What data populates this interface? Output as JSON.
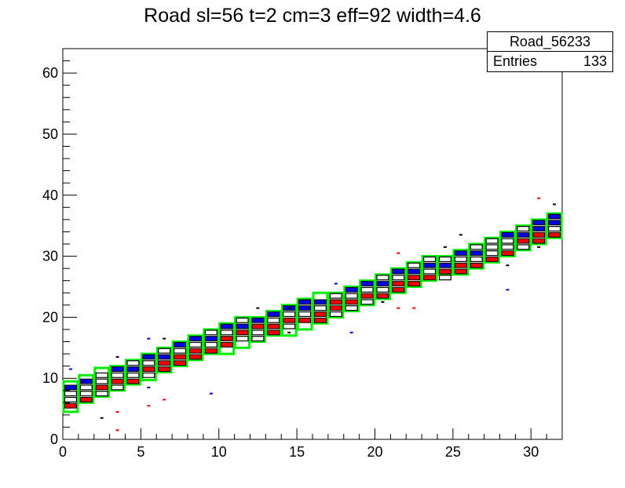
{
  "chart_data": {
    "type": "heatmap",
    "title": "Road sl=56 t=2 cm=3 eff=92 width=4.6",
    "xlabel": "",
    "ylabel": "",
    "xlim": [
      0,
      32
    ],
    "ylim": [
      0,
      64
    ],
    "x_ticks": [
      "0",
      "5",
      "10",
      "15",
      "20",
      "25",
      "30"
    ],
    "y_ticks": [
      "0",
      "10",
      "20",
      "30",
      "40",
      "50",
      "60"
    ],
    "stats_box": {
      "name": "Road_56233",
      "entries_label": "Entries",
      "entries_value": "133"
    },
    "colors": {
      "road": "#00ee00",
      "blue": "#0000dd",
      "red": "#ee0000",
      "black": "#000000",
      "frame": "#000000"
    },
    "road_boxes": [
      {
        "x0": 0,
        "x1": 1,
        "y0": 4.5,
        "y1": 9.5
      },
      {
        "x0": 1,
        "x1": 2,
        "y0": 6,
        "y1": 10.5
      },
      {
        "x0": 2,
        "x1": 3,
        "y0": 7,
        "y1": 11.7
      },
      {
        "x0": 3,
        "x1": 4,
        "y0": 8,
        "y1": 12
      },
      {
        "x0": 4,
        "x1": 5,
        "y0": 9,
        "y1": 13
      },
      {
        "x0": 5,
        "x1": 6,
        "y0": 9.7,
        "y1": 14
      },
      {
        "x0": 6,
        "x1": 7,
        "y0": 11,
        "y1": 15
      },
      {
        "x0": 7,
        "x1": 8,
        "y0": 12,
        "y1": 16
      },
      {
        "x0": 8,
        "x1": 9,
        "y0": 13,
        "y1": 17
      },
      {
        "x0": 9,
        "x1": 10,
        "y0": 14,
        "y1": 18
      },
      {
        "x0": 10,
        "x1": 11,
        "y0": 14,
        "y1": 19
      },
      {
        "x0": 11,
        "x1": 12,
        "y0": 15,
        "y1": 20
      },
      {
        "x0": 12,
        "x1": 13,
        "y0": 16,
        "y1": 20
      },
      {
        "x0": 13,
        "x1": 14,
        "y0": 17,
        "y1": 21
      },
      {
        "x0": 14,
        "x1": 15,
        "y0": 17,
        "y1": 22
      },
      {
        "x0": 15,
        "x1": 16,
        "y0": 18,
        "y1": 23
      },
      {
        "x0": 16,
        "x1": 17,
        "y0": 19,
        "y1": 24
      },
      {
        "x0": 17,
        "x1": 18,
        "y0": 20,
        "y1": 24
      },
      {
        "x0": 18,
        "x1": 19,
        "y0": 21,
        "y1": 25
      },
      {
        "x0": 19,
        "x1": 20,
        "y0": 22,
        "y1": 26
      },
      {
        "x0": 20,
        "x1": 21,
        "y0": 23,
        "y1": 27
      },
      {
        "x0": 21,
        "x1": 22,
        "y0": 24,
        "y1": 28
      },
      {
        "x0": 22,
        "x1": 23,
        "y0": 25,
        "y1": 29
      },
      {
        "x0": 23,
        "x1": 24,
        "y0": 26,
        "y1": 30
      },
      {
        "x0": 24,
        "x1": 25,
        "y0": 27,
        "y1": 30
      },
      {
        "x0": 25,
        "x1": 26,
        "y0": 27,
        "y1": 31
      },
      {
        "x0": 26,
        "x1": 27,
        "y0": 28,
        "y1": 32
      },
      {
        "x0": 27,
        "x1": 28,
        "y0": 29,
        "y1": 33
      },
      {
        "x0": 28,
        "x1": 29,
        "y0": 30,
        "y1": 34
      },
      {
        "x0": 29,
        "x1": 30,
        "y0": 31,
        "y1": 35
      },
      {
        "x0": 30,
        "x1": 31,
        "y0": 32,
        "y1": 36
      },
      {
        "x0": 31,
        "x1": 32,
        "y0": 33,
        "y1": 37
      }
    ],
    "cells": [
      {
        "x": 0.5,
        "y": 8.5,
        "c": "blue"
      },
      {
        "x": 0.5,
        "y": 7.5,
        "c": "black"
      },
      {
        "x": 0.5,
        "y": 6.5,
        "c": "black"
      },
      {
        "x": 0.5,
        "y": 5.5,
        "c": "red"
      },
      {
        "x": 1.5,
        "y": 9.5,
        "c": "blue"
      },
      {
        "x": 1.5,
        "y": 8.5,
        "c": "black"
      },
      {
        "x": 1.5,
        "y": 7.5,
        "c": "black"
      },
      {
        "x": 1.5,
        "y": 6.5,
        "c": "red"
      },
      {
        "x": 2.5,
        "y": 10.5,
        "c": "black"
      },
      {
        "x": 2.5,
        "y": 9.5,
        "c": "black"
      },
      {
        "x": 2.5,
        "y": 8.5,
        "c": "red"
      },
      {
        "x": 2.5,
        "y": 7.5,
        "c": "black"
      },
      {
        "x": 3.5,
        "y": 11.5,
        "c": "blue"
      },
      {
        "x": 3.5,
        "y": 10.5,
        "c": "black"
      },
      {
        "x": 3.5,
        "y": 9.5,
        "c": "red"
      },
      {
        "x": 3.5,
        "y": 8.5,
        "c": "black"
      },
      {
        "x": 4.5,
        "y": 12.5,
        "c": "black"
      },
      {
        "x": 4.5,
        "y": 11.5,
        "c": "blue"
      },
      {
        "x": 4.5,
        "y": 10.5,
        "c": "black"
      },
      {
        "x": 4.5,
        "y": 9.5,
        "c": "red"
      },
      {
        "x": 5.5,
        "y": 13.5,
        "c": "blue"
      },
      {
        "x": 5.5,
        "y": 12.5,
        "c": "black"
      },
      {
        "x": 5.5,
        "y": 11.5,
        "c": "red"
      },
      {
        "x": 5.5,
        "y": 10.5,
        "c": "black"
      },
      {
        "x": 6.5,
        "y": 14.5,
        "c": "black"
      },
      {
        "x": 6.5,
        "y": 13.5,
        "c": "blue"
      },
      {
        "x": 6.5,
        "y": 12.5,
        "c": "red"
      },
      {
        "x": 6.5,
        "y": 11.5,
        "c": "red"
      },
      {
        "x": 7.5,
        "y": 15.5,
        "c": "blue"
      },
      {
        "x": 7.5,
        "y": 14.5,
        "c": "black"
      },
      {
        "x": 7.5,
        "y": 13.5,
        "c": "red"
      },
      {
        "x": 7.5,
        "y": 12.5,
        "c": "red"
      },
      {
        "x": 8.5,
        "y": 16.5,
        "c": "blue"
      },
      {
        "x": 8.5,
        "y": 15.5,
        "c": "black"
      },
      {
        "x": 8.5,
        "y": 14.5,
        "c": "red"
      },
      {
        "x": 8.5,
        "y": 13.5,
        "c": "red"
      },
      {
        "x": 9.5,
        "y": 17.5,
        "c": "black"
      },
      {
        "x": 9.5,
        "y": 16.5,
        "c": "blue"
      },
      {
        "x": 9.5,
        "y": 15.5,
        "c": "black"
      },
      {
        "x": 9.5,
        "y": 14.5,
        "c": "red"
      },
      {
        "x": 10.5,
        "y": 18.5,
        "c": "blue"
      },
      {
        "x": 10.5,
        "y": 17.5,
        "c": "black"
      },
      {
        "x": 10.5,
        "y": 16.5,
        "c": "red"
      },
      {
        "x": 10.5,
        "y": 15.5,
        "c": "red"
      },
      {
        "x": 11.5,
        "y": 19.5,
        "c": "black"
      },
      {
        "x": 11.5,
        "y": 18.5,
        "c": "blue"
      },
      {
        "x": 11.5,
        "y": 17.5,
        "c": "red"
      },
      {
        "x": 11.5,
        "y": 16.5,
        "c": "black"
      },
      {
        "x": 12.5,
        "y": 19.5,
        "c": "blue"
      },
      {
        "x": 12.5,
        "y": 18.5,
        "c": "red"
      },
      {
        "x": 12.5,
        "y": 17.5,
        "c": "black"
      },
      {
        "x": 12.5,
        "y": 16.5,
        "c": "black"
      },
      {
        "x": 13.5,
        "y": 20.5,
        "c": "blue"
      },
      {
        "x": 13.5,
        "y": 19.5,
        "c": "black"
      },
      {
        "x": 13.5,
        "y": 18.5,
        "c": "red"
      },
      {
        "x": 13.5,
        "y": 17.5,
        "c": "red"
      },
      {
        "x": 14.5,
        "y": 21.5,
        "c": "blue"
      },
      {
        "x": 14.5,
        "y": 20.5,
        "c": "black"
      },
      {
        "x": 14.5,
        "y": 19.5,
        "c": "red"
      },
      {
        "x": 14.5,
        "y": 18.5,
        "c": "black"
      },
      {
        "x": 15.5,
        "y": 22.5,
        "c": "blue"
      },
      {
        "x": 15.5,
        "y": 21.5,
        "c": "blue"
      },
      {
        "x": 15.5,
        "y": 20.5,
        "c": "black"
      },
      {
        "x": 15.5,
        "y": 19.5,
        "c": "red"
      },
      {
        "x": 16.5,
        "y": 22.5,
        "c": "blue"
      },
      {
        "x": 16.5,
        "y": 21.5,
        "c": "black"
      },
      {
        "x": 16.5,
        "y": 20.5,
        "c": "red"
      },
      {
        "x": 16.5,
        "y": 19.5,
        "c": "red"
      },
      {
        "x": 17.5,
        "y": 23.5,
        "c": "black"
      },
      {
        "x": 17.5,
        "y": 22.5,
        "c": "red"
      },
      {
        "x": 17.5,
        "y": 21.5,
        "c": "red"
      },
      {
        "x": 17.5,
        "y": 20.5,
        "c": "black"
      },
      {
        "x": 18.5,
        "y": 24.5,
        "c": "blue"
      },
      {
        "x": 18.5,
        "y": 23.5,
        "c": "black"
      },
      {
        "x": 18.5,
        "y": 22.5,
        "c": "red"
      },
      {
        "x": 18.5,
        "y": 21.5,
        "c": "black"
      },
      {
        "x": 19.5,
        "y": 25.5,
        "c": "blue"
      },
      {
        "x": 19.5,
        "y": 24.5,
        "c": "black"
      },
      {
        "x": 19.5,
        "y": 23.5,
        "c": "red"
      },
      {
        "x": 19.5,
        "y": 22.5,
        "c": "black"
      },
      {
        "x": 20.5,
        "y": 26.5,
        "c": "black"
      },
      {
        "x": 20.5,
        "y": 25.5,
        "c": "blue"
      },
      {
        "x": 20.5,
        "y": 24.5,
        "c": "black"
      },
      {
        "x": 20.5,
        "y": 23.5,
        "c": "red"
      },
      {
        "x": 21.5,
        "y": 27.5,
        "c": "blue"
      },
      {
        "x": 21.5,
        "y": 26.5,
        "c": "black"
      },
      {
        "x": 21.5,
        "y": 25.5,
        "c": "red"
      },
      {
        "x": 21.5,
        "y": 24.5,
        "c": "red"
      },
      {
        "x": 22.5,
        "y": 28.5,
        "c": "black"
      },
      {
        "x": 22.5,
        "y": 27.5,
        "c": "blue"
      },
      {
        "x": 22.5,
        "y": 26.5,
        "c": "red"
      },
      {
        "x": 22.5,
        "y": 25.5,
        "c": "red"
      },
      {
        "x": 23.5,
        "y": 29.5,
        "c": "black"
      },
      {
        "x": 23.5,
        "y": 28.5,
        "c": "blue"
      },
      {
        "x": 23.5,
        "y": 27.5,
        "c": "black"
      },
      {
        "x": 23.5,
        "y": 26.5,
        "c": "red"
      },
      {
        "x": 24.5,
        "y": 29.5,
        "c": "black"
      },
      {
        "x": 24.5,
        "y": 28.5,
        "c": "blue"
      },
      {
        "x": 24.5,
        "y": 27.5,
        "c": "red"
      },
      {
        "x": 24.5,
        "y": 26.5,
        "c": "black"
      },
      {
        "x": 25.5,
        "y": 30.5,
        "c": "blue"
      },
      {
        "x": 25.5,
        "y": 29.5,
        "c": "black"
      },
      {
        "x": 25.5,
        "y": 28.5,
        "c": "red"
      },
      {
        "x": 25.5,
        "y": 27.5,
        "c": "red"
      },
      {
        "x": 26.5,
        "y": 31.5,
        "c": "black"
      },
      {
        "x": 26.5,
        "y": 30.5,
        "c": "blue"
      },
      {
        "x": 26.5,
        "y": 29.5,
        "c": "black"
      },
      {
        "x": 26.5,
        "y": 28.5,
        "c": "red"
      },
      {
        "x": 27.5,
        "y": 32.5,
        "c": "black"
      },
      {
        "x": 27.5,
        "y": 31.5,
        "c": "black"
      },
      {
        "x": 27.5,
        "y": 30.5,
        "c": "black"
      },
      {
        "x": 27.5,
        "y": 29.5,
        "c": "red"
      },
      {
        "x": 28.5,
        "y": 33.5,
        "c": "blue"
      },
      {
        "x": 28.5,
        "y": 32.5,
        "c": "black"
      },
      {
        "x": 28.5,
        "y": 31.5,
        "c": "black"
      },
      {
        "x": 28.5,
        "y": 30.5,
        "c": "red"
      },
      {
        "x": 29.5,
        "y": 34.5,
        "c": "black"
      },
      {
        "x": 29.5,
        "y": 33.5,
        "c": "blue"
      },
      {
        "x": 29.5,
        "y": 32.5,
        "c": "red"
      },
      {
        "x": 29.5,
        "y": 31.5,
        "c": "black"
      },
      {
        "x": 30.5,
        "y": 35.5,
        "c": "blue"
      },
      {
        "x": 30.5,
        "y": 34.5,
        "c": "blue"
      },
      {
        "x": 30.5,
        "y": 33.5,
        "c": "red"
      },
      {
        "x": 30.5,
        "y": 32.5,
        "c": "red"
      },
      {
        "x": 31.5,
        "y": 36.5,
        "c": "blue"
      },
      {
        "x": 31.5,
        "y": 35.5,
        "c": "blue"
      },
      {
        "x": 31.5,
        "y": 34.5,
        "c": "black"
      },
      {
        "x": 31.5,
        "y": 33.5,
        "c": "red"
      }
    ],
    "isolated_points": [
      {
        "x": 3.5,
        "y": 1.5,
        "c": "red"
      },
      {
        "x": 3.5,
        "y": 4.5,
        "c": "red"
      },
      {
        "x": 5.5,
        "y": 5.5,
        "c": "red"
      },
      {
        "x": 6.5,
        "y": 6.5,
        "c": "red"
      },
      {
        "x": 9.5,
        "y": 7.5,
        "c": "blue"
      },
      {
        "x": 5.5,
        "y": 8.5,
        "c": "blue"
      },
      {
        "x": 6.5,
        "y": 16.5,
        "c": "black"
      },
      {
        "x": 3.5,
        "y": 13.5,
        "c": "black"
      },
      {
        "x": 5.5,
        "y": 16.5,
        "c": "blue"
      },
      {
        "x": 12.5,
        "y": 21.5,
        "c": "black"
      },
      {
        "x": 14.5,
        "y": 21.5,
        "c": "black"
      },
      {
        "x": 14.5,
        "y": 17.5,
        "c": "black"
      },
      {
        "x": 17.5,
        "y": 25.5,
        "c": "blue"
      },
      {
        "x": 18.5,
        "y": 17.5,
        "c": "blue"
      },
      {
        "x": 20.5,
        "y": 22.5,
        "c": "black"
      },
      {
        "x": 21.5,
        "y": 21.5,
        "c": "red"
      },
      {
        "x": 22.5,
        "y": 21.5,
        "c": "red"
      },
      {
        "x": 21.5,
        "y": 30.5,
        "c": "red"
      },
      {
        "x": 24.5,
        "y": 31.5,
        "c": "black"
      },
      {
        "x": 28.5,
        "y": 24.5,
        "c": "blue"
      },
      {
        "x": 28.5,
        "y": 28.5,
        "c": "black"
      },
      {
        "x": 30.5,
        "y": 39.5,
        "c": "red"
      },
      {
        "x": 31.5,
        "y": 38.5,
        "c": "black"
      },
      {
        "x": 30.5,
        "y": 31.5,
        "c": "black"
      },
      {
        "x": 25.5,
        "y": 33.5,
        "c": "black"
      },
      {
        "x": 0.5,
        "y": 11.5,
        "c": "blue"
      },
      {
        "x": 2.5,
        "y": 3.5,
        "c": "black"
      }
    ]
  }
}
